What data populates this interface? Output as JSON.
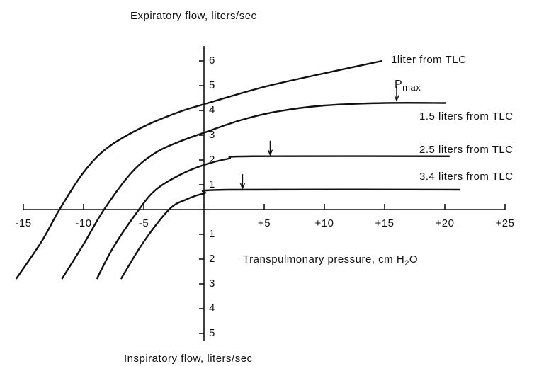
{
  "chart_data": {
    "type": "line",
    "title": "Expiratory flow, liters/sec",
    "bottom_title": "Inspiratory flow, liters/sec",
    "xlabel": {
      "text": "Transpulmonary pressure, cm H",
      "sub": "2",
      "tail": "O"
    },
    "xlim": [
      -15,
      25
    ],
    "ylim": [
      -5.3,
      6.6
    ],
    "xticks": [
      -15,
      -10,
      -5,
      {
        "value": 5,
        "label": "+5"
      },
      {
        "value": 10,
        "label": "+10"
      },
      {
        "value": 15,
        "label": "+15"
      },
      {
        "value": 20,
        "label": "+20"
      },
      {
        "value": 25,
        "label": "+25"
      }
    ],
    "yticks": [
      {
        "value": -5,
        "label": "5"
      },
      {
        "value": -4,
        "label": "4"
      },
      {
        "value": -3,
        "label": "3"
      },
      {
        "value": -2,
        "label": "2"
      },
      {
        "value": -1,
        "label": "1"
      },
      1,
      2,
      3,
      4,
      5,
      6
    ],
    "series": [
      {
        "name": "1liter from TLC",
        "color": "#111111",
        "x": [
          -15.6,
          -13.5,
          -12,
          -10,
          -8,
          -5,
          -2,
          0,
          5,
          10,
          14.8
        ],
        "values": [
          -2.8,
          -1.3,
          0,
          1.5,
          2.5,
          3.35,
          3.95,
          4.25,
          4.95,
          5.5,
          6.0
        ]
      },
      {
        "name": "1.5 liters from TLC",
        "color": "#111111",
        "x": [
          -11.8,
          -10,
          -8.3,
          -6,
          -4,
          -2,
          0,
          3,
          6,
          10,
          15,
          20.1
        ],
        "values": [
          -2.8,
          -1.4,
          0,
          1.5,
          2.3,
          2.75,
          3.1,
          3.6,
          3.95,
          4.2,
          4.3,
          4.3
        ]
      },
      {
        "name": "2.5 liters from TLC",
        "color": "#111111",
        "x": [
          -8.9,
          -7.5,
          -5.4,
          -4,
          -2,
          0,
          2,
          4,
          20.4
        ],
        "values": [
          -2.8,
          -1.5,
          0,
          0.8,
          1.4,
          1.8,
          2.05,
          2.15,
          2.15
        ]
      },
      {
        "name": "3.4 liters from TLC",
        "color": "#111111",
        "x": [
          -6.9,
          -5,
          -2.9,
          -1.5,
          0,
          2,
          21.3
        ],
        "values": [
          -2.8,
          -1.3,
          0,
          0.4,
          0.65,
          0.8,
          0.8
        ]
      }
    ],
    "pmax_label": {
      "text": "P",
      "sub": "max"
    },
    "arrows": [
      {
        "x": 16,
        "y": 4.35
      },
      {
        "x": 5.5,
        "y": 2.15
      },
      {
        "x": 3.2,
        "y": 0.8
      }
    ]
  }
}
